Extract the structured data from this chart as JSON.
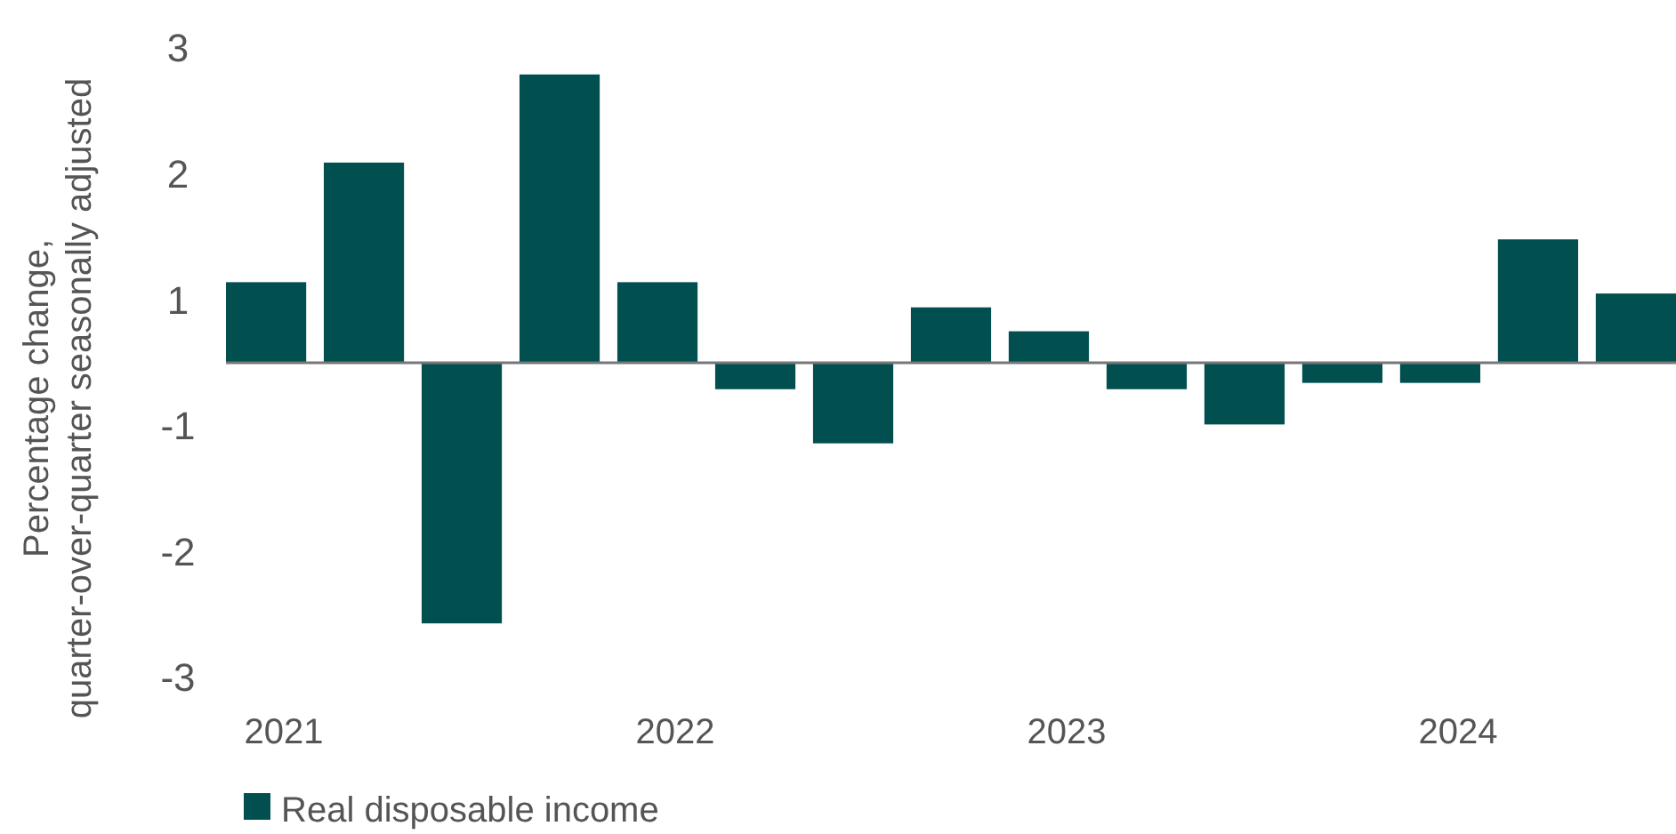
{
  "chart_data": {
    "type": "bar",
    "ylabel": "Percentage change,\nquarter-over-quarter seasonally adjusted",
    "categories": [
      "2021",
      null,
      null,
      null,
      "2022",
      null,
      null,
      null,
      "2023",
      null,
      null,
      null,
      "2024",
      null,
      null
    ],
    "series": [
      {
        "name": "Real disposable income",
        "color": "#024f50",
        "values": [
          0.64,
          1.59,
          -2.07,
          2.29,
          0.64,
          -0.21,
          -0.64,
          0.44,
          0.25,
          -0.21,
          -0.49,
          -0.16,
          -0.16,
          0.98,
          0.55
        ]
      }
    ],
    "ylim": [
      -2.5,
      2.5
    ],
    "yticks": [
      {
        "value": 2.5,
        "label": "3"
      },
      {
        "value": 1.5,
        "label": "2"
      },
      {
        "value": 0.5,
        "label": "1"
      },
      {
        "value": -0.5,
        "label": "-1"
      },
      {
        "value": -1.5,
        "label": "-2"
      },
      {
        "value": -2.5,
        "label": "-3"
      }
    ],
    "grid": false,
    "legend": "bottom"
  }
}
